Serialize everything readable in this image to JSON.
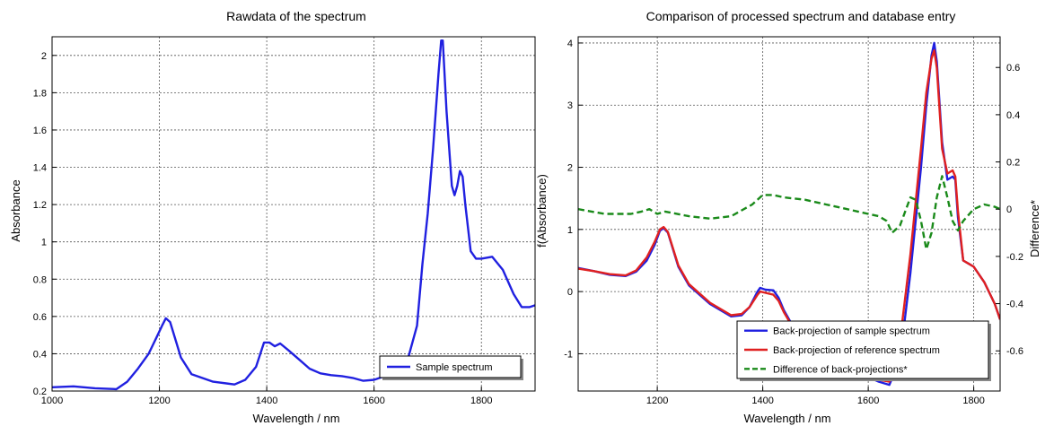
{
  "chart_data": [
    {
      "type": "line",
      "title": "Rawdata of the spectrum",
      "xlabel": "Wavelength / nm",
      "ylabel": "Absorbance",
      "xlim": [
        1000,
        1900
      ],
      "ylim": [
        0.2,
        2.1
      ],
      "x_ticks": [
        1000,
        1200,
        1400,
        1600,
        1800
      ],
      "y_ticks": [
        0.2,
        0.4,
        0.6,
        0.8,
        1,
        1.2,
        1.4,
        1.6,
        1.8,
        2
      ],
      "grid": true,
      "legend_position": "bottom-right",
      "series": [
        {
          "name": "Sample spectrum",
          "color": "#2020e0",
          "style": "solid",
          "x": [
            1000,
            1040,
            1080,
            1120,
            1140,
            1160,
            1180,
            1195,
            1205,
            1212,
            1220,
            1240,
            1260,
            1300,
            1340,
            1360,
            1380,
            1395,
            1405,
            1415,
            1425,
            1440,
            1460,
            1480,
            1500,
            1520,
            1540,
            1560,
            1580,
            1600,
            1620,
            1640,
            1660,
            1680,
            1690,
            1700,
            1710,
            1720,
            1725,
            1728,
            1735,
            1745,
            1750,
            1755,
            1760,
            1765,
            1770,
            1780,
            1790,
            1800,
            1820,
            1840,
            1860,
            1875,
            1890,
            1900
          ],
          "y": [
            0.22,
            0.225,
            0.215,
            0.21,
            0.25,
            0.32,
            0.4,
            0.49,
            0.55,
            0.59,
            0.57,
            0.38,
            0.29,
            0.25,
            0.235,
            0.26,
            0.33,
            0.46,
            0.46,
            0.44,
            0.455,
            0.42,
            0.37,
            0.32,
            0.295,
            0.285,
            0.28,
            0.27,
            0.255,
            0.26,
            0.28,
            0.3,
            0.34,
            0.55,
            0.88,
            1.15,
            1.5,
            1.9,
            2.08,
            2.08,
            1.7,
            1.3,
            1.25,
            1.3,
            1.38,
            1.35,
            1.2,
            0.95,
            0.91,
            0.91,
            0.92,
            0.85,
            0.72,
            0.65,
            0.65,
            0.66
          ]
        }
      ]
    },
    {
      "type": "line",
      "title": "Comparison of processed spectrum and database entry",
      "xlabel": "Wavelength / nm",
      "ylabel": "f(Absorbance)",
      "y2label": "Difference*",
      "xlim": [
        1050,
        1850
      ],
      "ylim": [
        -1.6,
        4.1
      ],
      "y2lim": [
        -0.77,
        0.73
      ],
      "x_ticks": [
        1200,
        1400,
        1600,
        1800
      ],
      "y_ticks": [
        -1,
        0,
        1,
        2,
        3,
        4
      ],
      "y2_ticks": [
        -0.6,
        -0.4,
        -0.2,
        0,
        0.2,
        0.4,
        0.6
      ],
      "grid": true,
      "legend_position": "bottom-right",
      "series": [
        {
          "name": "Back-projection of sample spectrum",
          "color": "#2020e0",
          "style": "solid",
          "axis": "left",
          "x": [
            1050,
            1080,
            1110,
            1140,
            1160,
            1180,
            1195,
            1205,
            1212,
            1220,
            1240,
            1260,
            1300,
            1340,
            1360,
            1375,
            1390,
            1395,
            1405,
            1420,
            1430,
            1440,
            1460,
            1500,
            1540,
            1580,
            1620,
            1640,
            1660,
            1680,
            1700,
            1710,
            1720,
            1725,
            1730,
            1740,
            1750,
            1760,
            1765,
            1770,
            1780,
            1790,
            1800,
            1820,
            1840,
            1850
          ],
          "y": [
            0.38,
            0.33,
            0.27,
            0.25,
            0.32,
            0.5,
            0.75,
            0.98,
            1.02,
            0.95,
            0.4,
            0.1,
            -0.2,
            -0.4,
            -0.38,
            -0.25,
            0.0,
            0.06,
            0.03,
            0.02,
            -0.1,
            -0.3,
            -0.6,
            -0.95,
            -1.15,
            -1.3,
            -1.45,
            -1.5,
            -1.1,
            0.3,
            2.0,
            3.0,
            3.8,
            4.0,
            3.7,
            2.4,
            1.8,
            1.85,
            1.8,
            1.2,
            0.5,
            0.45,
            0.4,
            0.15,
            -0.2,
            -0.45
          ]
        },
        {
          "name": "Back-projection of reference spectrum",
          "color": "#e02020",
          "style": "solid",
          "axis": "left",
          "x": [
            1050,
            1080,
            1110,
            1140,
            1160,
            1180,
            1195,
            1205,
            1212,
            1220,
            1240,
            1260,
            1300,
            1340,
            1360,
            1375,
            1390,
            1395,
            1405,
            1420,
            1430,
            1440,
            1460,
            1500,
            1540,
            1580,
            1620,
            1640,
            1660,
            1680,
            1700,
            1710,
            1720,
            1725,
            1730,
            1740,
            1750,
            1760,
            1765,
            1770,
            1780,
            1790,
            1800,
            1820,
            1840,
            1850
          ],
          "y": [
            0.37,
            0.33,
            0.28,
            0.26,
            0.34,
            0.55,
            0.8,
            1.0,
            1.04,
            0.96,
            0.42,
            0.12,
            -0.18,
            -0.38,
            -0.36,
            -0.25,
            -0.05,
            0.0,
            -0.02,
            -0.05,
            -0.15,
            -0.33,
            -0.62,
            -0.95,
            -1.15,
            -1.3,
            -1.42,
            -1.45,
            -0.8,
            0.6,
            2.3,
            3.2,
            3.75,
            3.88,
            3.6,
            2.3,
            1.9,
            1.95,
            1.85,
            1.3,
            0.5,
            0.45,
            0.4,
            0.15,
            -0.2,
            -0.45
          ]
        },
        {
          "name": "Difference of back-projections*",
          "color": "#1a8a1a",
          "style": "dashed",
          "axis": "right",
          "x": [
            1050,
            1100,
            1150,
            1170,
            1185,
            1200,
            1215,
            1260,
            1300,
            1340,
            1380,
            1400,
            1420,
            1440,
            1480,
            1520,
            1560,
            1600,
            1620,
            1635,
            1645,
            1660,
            1680,
            1690,
            1700,
            1710,
            1720,
            1730,
            1740,
            1750,
            1760,
            1770,
            1780,
            1800,
            1820,
            1840,
            1850
          ],
          "y": [
            0.0,
            -0.02,
            -0.02,
            -0.01,
            0.0,
            -0.02,
            -0.01,
            -0.03,
            -0.04,
            -0.03,
            0.02,
            0.06,
            0.06,
            0.05,
            0.04,
            0.02,
            0.0,
            -0.02,
            -0.03,
            -0.05,
            -0.1,
            -0.07,
            0.05,
            0.04,
            -0.05,
            -0.17,
            -0.1,
            0.05,
            0.14,
            0.05,
            -0.05,
            -0.09,
            -0.05,
            0.0,
            0.02,
            0.01,
            0.0
          ]
        }
      ]
    }
  ]
}
